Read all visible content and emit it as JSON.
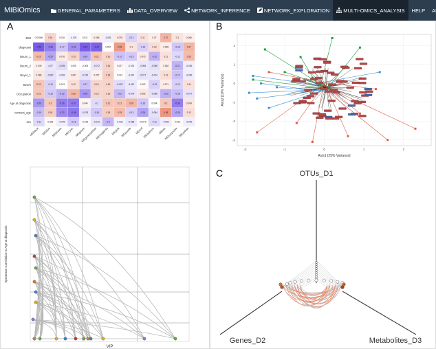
{
  "app": {
    "brand": "MiBiOmics"
  },
  "nav": {
    "tabs": [
      {
        "label": "GENERAL_PARAMETERS",
        "icon": "folder-icon",
        "active": false
      },
      {
        "label": "DATA_OVERVIEW",
        "icon": "bar-chart-icon",
        "active": false
      },
      {
        "label": "NETWORK_INFERENCE",
        "icon": "share-icon",
        "active": false
      },
      {
        "label": "NETWORK_EXPLORATION",
        "icon": "edit-icon",
        "active": false
      },
      {
        "label": "MULTI-OMICS_ANALYSIS",
        "icon": "sitemap-icon",
        "active": true
      },
      {
        "label": "HELP",
        "icon": "",
        "active": false
      },
      {
        "label": "ABOUT",
        "icon": "",
        "active": false
      }
    ],
    "colors": {
      "bar": "#2c3e50",
      "active": "#1a242f"
    }
  },
  "panels": {
    "a": {
      "letter": "A"
    },
    "b": {
      "letter": "B"
    },
    "c": {
      "letter": "C"
    }
  },
  "chart_data": [
    {
      "type": "heatmap",
      "rows": [
        "BMI",
        "diagnosis",
        "Beurn_1",
        "Beurn_2",
        "Beyer_1",
        "Beurh",
        "Occupation",
        "Age at diagnosis",
        "consent_age",
        "sex"
      ],
      "columns": [
        "MEblack",
        "MEblue",
        "MEbrown",
        "MEcyan",
        "MEgreen",
        "MEgreenyellow",
        "MEmagenta",
        "MEpink",
        "MEpurple",
        "MEred",
        "MEsalmon",
        "MEtan",
        "MEturquoise",
        "MEyellow"
      ],
      "values": [
        [
          0.00066,
          0.16,
          0.016,
          -0.029,
          0.011,
          0.066,
          -0.051,
          0.076,
          -0.12,
          0.11,
          0.07,
          0.27,
          0.1,
          0.066
        ],
        [
          -0.46,
          -0.36,
          -0.17,
          -0.31,
          -0.45,
          -0.44,
          0.004,
          0.36,
          0.1,
          -0.13,
          0.13,
          0.069,
          -0.16,
          0.27
        ],
        [
          0.25,
          -0.25,
          0.076,
          0.15,
          -0.24,
          0.22,
          0.16,
          -0.17,
          -0.15,
          0.075,
          -0.22,
          0.11,
          -0.11,
          0.25
        ],
        [
          0.049,
          -0.07,
          -0.094,
          0.005,
          -0.006,
          -0.072,
          0.16,
          0.027,
          -0.032,
          -0.066,
          -0.086,
          0.062,
          -0.21,
          -0.046
        ],
        [
          0.086,
          -0.087,
          -0.052,
          0.067,
          -0.079,
          0.057,
          0.18,
          0.013,
          -0.047,
          -0.077,
          -0.074,
          0.12,
          -0.17,
          -0.052
        ],
        [
          0.21,
          -0.13,
          0.013,
          0.12,
          -0.17,
          0.15,
          0.16,
          -0.097,
          -0.067,
          0.022,
          -0.13,
          0.071,
          -0.13,
          0.11
        ],
        [
          0.21,
          -0.15,
          -0.22,
          0.26,
          -0.29,
          0.15,
          0.16,
          -0.2,
          -0.079,
          0.092,
          -0.086,
          -0.22,
          -0.18,
          -0.077
        ],
        [
          -0.29,
          0.2,
          -0.36,
          -0.37,
          0.044,
          -0.1,
          0.21,
          0.21,
          0.26,
          -0.16,
          0.004,
          0.2,
          -0.36,
          0.094
        ],
        [
          -0.19,
          0.18,
          -0.32,
          -0.38,
          -0.078,
          -0.16,
          0.18,
          0.25,
          -0.13,
          -0.26,
          -0.084,
          0.38,
          -0.25,
          0.12
        ],
        [
          -0.11,
          0.026,
          -0.049,
          -0.15,
          -0.016,
          -0.072,
          -0.2,
          -0.033,
          -0.066,
          0.0079,
          -0.11,
          -0.052,
          0.019,
          -0.049
        ]
      ],
      "colors": {
        "negative": "#6b4ce6",
        "positive": "#e87456",
        "zero": "#ffffff"
      }
    },
    {
      "type": "scatter",
      "xlabel": "VIP",
      "ylabel": "Spearman Correlation to Age at diagnosis",
      "grid": true
    },
    {
      "type": "scatter",
      "xlabel": "Axis1 [25% Variance]",
      "ylabel": "Axis2 [10% Variance]",
      "x_ticks": [
        "-2",
        "-1",
        "0",
        "1",
        "2"
      ],
      "y_ticks": [
        "-3",
        "-2",
        "-1",
        "0",
        "1",
        "2"
      ],
      "xlim": [
        -2.2,
        2.7
      ],
      "ylim": [
        -3.3,
        2.6
      ],
      "series_colors": [
        "#e05a4a",
        "#3a8fd8",
        "#1aa33a"
      ],
      "grid": true
    },
    {
      "type": "diagram",
      "nodes": [
        "OTUs_D1",
        "Genes_D2",
        "Metabolites_D3"
      ]
    }
  ]
}
